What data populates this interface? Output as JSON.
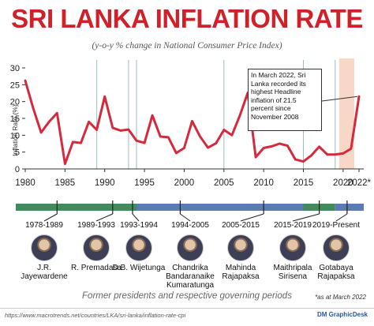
{
  "title": "SRI LANKA INFLATION RATE",
  "subtitle": "(y-o-y % change in National Consumer Price Index)",
  "callout": "In March 2022, Sri Lanka recorded its highest Headline inflation of 21.5 percent since November 2008",
  "footer_caption": "Former presidents and respective governing periods",
  "as_of": "*as at March 2022",
  "source": "https://www.macrotrends.net/countries/LKA/sri-lanka/inflation-rate-cpi",
  "brand": "DM GraphicDesk",
  "colors": {
    "title": "#d0212b",
    "line": "#d42a3c",
    "highlight": "#f6c6ae",
    "era_green": "#3f8d5c",
    "era_blue": "#5b7bb8"
  },
  "chart_data": {
    "type": "line",
    "title": "SRI LANKA INFLATION RATE",
    "ylabel": "Inflation Rate (%)",
    "xlim": [
      1980,
      2022
    ],
    "ylim": [
      0,
      30
    ],
    "x_ticks": [
      "1980",
      "1985",
      "1990",
      "1995",
      "2000",
      "2005",
      "2010",
      "2015",
      "2020",
      "2022*"
    ],
    "y_ticks": [
      "0",
      "5",
      "10",
      "15",
      "20",
      "25",
      "30"
    ],
    "grid": "vertical lines at presidency changes",
    "highlight_range": [
      2019.5,
      2021.4
    ],
    "series": [
      {
        "x": [
          1980,
          1981,
          1982,
          1983,
          1984,
          1985,
          1986,
          1987,
          1988,
          1989,
          1990,
          1991,
          1992,
          1993,
          1994,
          1995,
          1996,
          1997,
          1998,
          1999,
          2000,
          2001,
          2002,
          2003,
          2004,
          2005,
          2006,
          2007,
          2008,
          2009,
          2010,
          2011,
          2012,
          2013,
          2014,
          2015,
          2016,
          2017,
          2018,
          2019,
          2020,
          2021,
          2022
        ],
        "values": [
          26.2,
          18.0,
          10.8,
          14.0,
          16.6,
          1.5,
          8.0,
          7.7,
          14.0,
          11.6,
          21.5,
          12.2,
          11.4,
          11.7,
          8.4,
          7.7,
          15.9,
          9.6,
          9.4,
          4.7,
          6.2,
          14.2,
          9.6,
          6.3,
          7.6,
          11.6,
          10.0,
          15.8,
          22.6,
          3.5,
          6.2,
          6.7,
          7.5,
          6.9,
          2.8,
          2.2,
          4.0,
          6.6,
          4.3,
          4.3,
          4.6,
          6.0,
          21.5
        ]
      }
    ]
  },
  "eras": [
    {
      "period": "1978-1989",
      "name": "J.R. Jayewardene",
      "color": "#3f8d5c"
    },
    {
      "period": "1989-1993",
      "name": "R. Premadasa",
      "color": "#3f8d5c"
    },
    {
      "period": "1993-1994",
      "name": "D.B. Wijetunga",
      "color": "#3f8d5c"
    },
    {
      "period": "1994-2005",
      "name": "Chandrika Bandaranaike Kumaratunga",
      "color": "#5b7bb8"
    },
    {
      "period": "2005-2015",
      "name": "Mahinda Rajapaksa",
      "color": "#5b7bb8"
    },
    {
      "period": "2015-2019",
      "name": "Maithripala Sirisena",
      "color": "#3f8d5c"
    },
    {
      "period": "2019-Present",
      "name": "Gotabaya Rajapaksa",
      "color": "#5b7bb8"
    }
  ]
}
